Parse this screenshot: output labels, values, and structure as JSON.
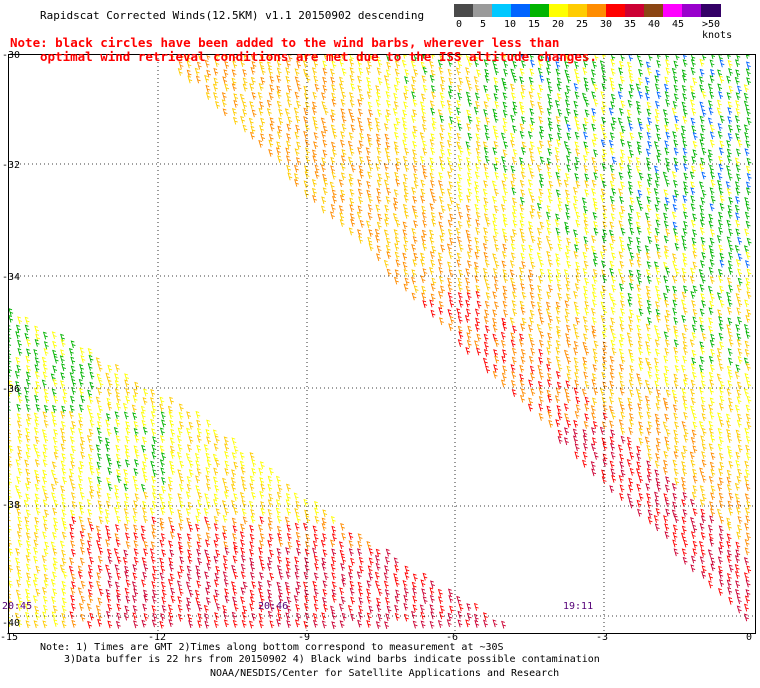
{
  "title": "Rapidscat Corrected Winds(12.5KM) v1.1 20150902 descending",
  "note": {
    "line1": "Note: black circles have been added to the wind barbs, wherever less than",
    "line2": "optimal wind retrieval conditions are met due to the ISS altitude changes."
  },
  "legend": {
    "colors": [
      "#4a4a4a",
      "#9a9a9a",
      "#00c8ff",
      "#0064ff",
      "#00b400",
      "#ffff00",
      "#ffcc00",
      "#ff8c00",
      "#ff0000",
      "#cc0033",
      "#8b4513",
      "#ff00ff",
      "#9900cc",
      "#330066"
    ],
    "labels": [
      "0",
      "5",
      "10",
      "15",
      "20",
      "25",
      "30",
      "35",
      "40",
      "45",
      ">50 knots"
    ]
  },
  "axes": {
    "lat_labels": [
      "-30",
      "-32",
      "-34",
      "-36",
      "-38",
      "-40"
    ],
    "lon_labels": [
      "-15",
      "-12",
      "-9",
      "-6",
      "-3",
      "0"
    ]
  },
  "times": [
    "20:45",
    "20:46",
    "19:11"
  ],
  "footer": {
    "line1": "Note: 1) Times are GMT 2)Times along bottom correspond to measurement at ~30S",
    "line2": "3)Data buffer is 22 hrs from 20150902 4) Black wind barbs indicate possible contamination",
    "line3": "NOAA/NESDIS/Center for Satellite Applications and Research"
  }
}
